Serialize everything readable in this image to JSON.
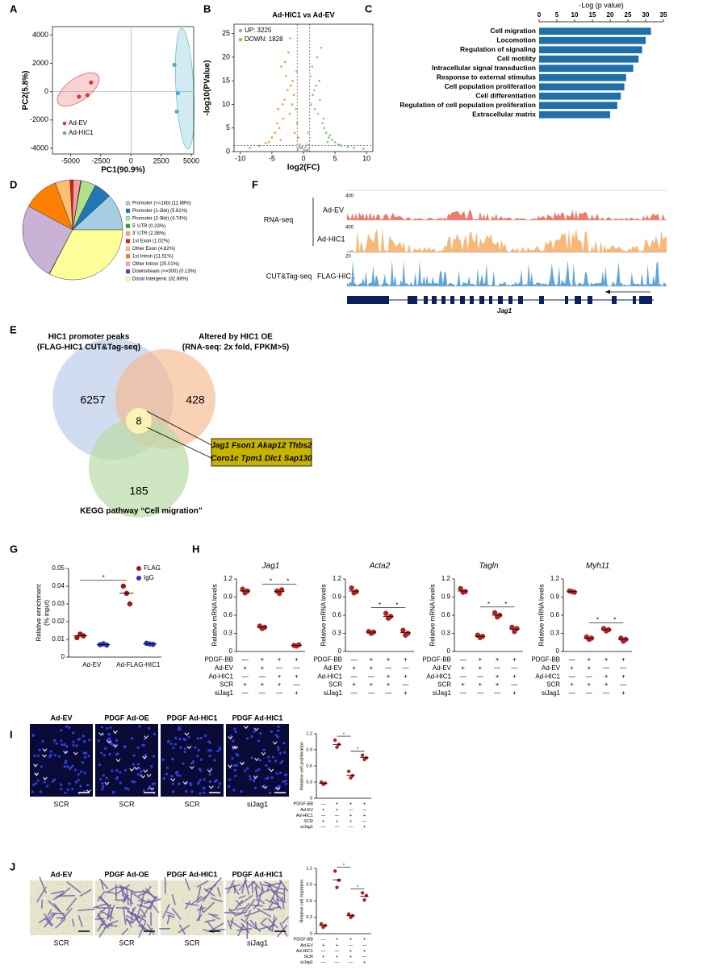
{
  "panel_labels": [
    "A",
    "B",
    "C",
    "D",
    "E",
    "F",
    "G",
    "H",
    "I",
    "J"
  ],
  "chart_data": [
    {
      "type": "scatter",
      "xlabel": "PC1(90.9%)",
      "ylabel": "PC2(5.8%)",
      "xlim": [
        -6500,
        5200
      ],
      "ylim": [
        -4400,
        4600
      ],
      "xticks": [
        -5000,
        -2500,
        0,
        2500,
        5000
      ],
      "yticks": [
        -4000,
        -2000,
        0,
        2000,
        4000
      ],
      "zero_lines": true,
      "legend": "lower left",
      "series": [
        {
          "name": "Ad-EV",
          "color": "#d9393a",
          "x": [
            -4300,
            -3600,
            -3300
          ],
          "y": [
            -350,
            -250,
            650
          ]
        },
        {
          "name": "Ad-HIC1",
          "color": "#4bafc9",
          "x": [
            3600,
            3900,
            3800
          ],
          "y": [
            1900,
            -100,
            -1400
          ]
        }
      ]
    },
    {
      "type": "scatter",
      "title": "Ad-HIC1 vs Ad-EV",
      "xlabel": "log2(FC)",
      "ylabel": "-log10(PValue)",
      "xlim": [
        -11,
        11
      ],
      "ylim": [
        0,
        27
      ],
      "xticks": [
        -10,
        -5,
        0,
        5,
        10
      ],
      "yticks": [
        0,
        5,
        10,
        15,
        20,
        25
      ],
      "reference_lines_x": [
        -1,
        1
      ],
      "reference_line_y": 1.3,
      "legend": "upper left",
      "series": [
        {
          "name": "UP: 3225",
          "color": "#7ec97e",
          "x": [
            0.6,
            0.8,
            1.0,
            1.2,
            1.5,
            1.8,
            2.0,
            2.3,
            2.6,
            3.0,
            3.3,
            3.6,
            4.0,
            4.5,
            5.0,
            5.5,
            6.0,
            7.0,
            8.0,
            9.5,
            1.1,
            1.4,
            2.2,
            2.8,
            3.8,
            1.7,
            2.5,
            4.2,
            5.8,
            3.2
          ],
          "y": [
            1.5,
            4,
            7,
            10,
            12,
            9,
            14,
            8,
            11,
            6,
            5,
            4,
            3,
            2.5,
            2,
            1.5,
            1.2,
            1,
            0.8,
            0.6,
            16,
            18,
            20,
            22,
            2,
            13,
            15,
            3.5,
            1.4,
            7
          ]
        },
        {
          "name": "DOWN: 1828",
          "color": "#f39a3b",
          "x": [
            -0.6,
            -0.8,
            -1.0,
            -1.2,
            -1.5,
            -1.8,
            -2.0,
            -2.2,
            -2.5,
            -2.8,
            -3.0,
            -3.2,
            -3.5,
            -3.8,
            -4.0,
            -4.5,
            -5.0,
            -5.5,
            -6.0,
            -7.0,
            -8.5,
            -1.1,
            -1.4,
            -2.4,
            -3.6,
            -2.9,
            -1.7,
            -4.2,
            -2.1,
            -3.3
          ],
          "y": [
            1.5,
            3,
            6,
            9,
            12,
            10,
            14,
            8,
            13,
            16,
            11,
            7,
            18,
            5,
            9,
            4,
            3,
            2,
            1.8,
            1.2,
            0.8,
            17,
            4,
            21,
            2.5,
            19,
            15,
            6,
            24,
            10
          ]
        },
        {
          "color": "#aaaaaa",
          "x": [
            -0.9,
            -0.5,
            -0.2,
            0.1,
            0.3,
            0.6,
            0.8,
            -0.7,
            0.4,
            -0.3
          ],
          "y": [
            0.5,
            0.8,
            1.0,
            0.4,
            0.9,
            0.3,
            0.6,
            1.1,
            0.2,
            0.7
          ]
        }
      ]
    },
    {
      "type": "barh",
      "xlabel": "-Log (p value)",
      "xlim": [
        0,
        35
      ],
      "xticks": [
        0,
        5,
        10,
        15,
        20,
        25,
        30,
        35
      ],
      "color": "#1f6fa8",
      "categories": [
        "Cell migration",
        "Locomotion",
        "Regulation of signaling",
        "Cell motility",
        "Intracellular signal transduction",
        "Response to external stimulus",
        "Cell population proliferation",
        "Cell differentiation",
        "Regulation of cell population proliferation",
        "Extracellular matrix"
      ],
      "values": [
        31.5,
        30,
        29,
        28,
        26.5,
        24.5,
        24,
        23,
        22,
        20
      ]
    },
    {
      "type": "pie",
      "labels": [
        "Promoter (<=1kb) (11.88%)",
        "Promoter (1-2kb) (5.61%)",
        "Promoter (2-3kb) (4.74%)",
        "5' UTR (0.23%)",
        "3' UTR (2.38%)",
        "1st Exon (1.02%)",
        "Other Exon (4.82%)",
        "1st Intron (11.51%)",
        "Other Intron (25.01%)",
        "Downstream (<=300) (0.13%)",
        "Distal Intergenic (32.68%)"
      ],
      "values": [
        11.88,
        5.61,
        4.74,
        0.23,
        2.38,
        1.02,
        4.82,
        11.51,
        25.01,
        0.13,
        32.68
      ],
      "colors": [
        "#a6cee3",
        "#1f78b4",
        "#b2df8a",
        "#33a02c",
        "#fb9a99",
        "#e31a1c",
        "#fdbf6f",
        "#ff7f00",
        "#cab2d6",
        "#6a3d9a",
        "#ffff99"
      ]
    },
    {
      "type": "dot",
      "ylabel": [
        "Relative enrichment",
        "(% input)"
      ],
      "ylim": [
        0,
        0.05
      ],
      "yticks": [
        0,
        0.01,
        0.02,
        0.03,
        0.04,
        0.05
      ],
      "categories": [
        "Ad-EV",
        "Ad-FLAG-HIC1"
      ],
      "legend": "upper right",
      "annotations": [
        "*"
      ],
      "series": [
        {
          "name": "FLAG",
          "color": "#a31515",
          "values": [
            [
              0.011,
              0.013,
              0.012
            ],
            [
              0.04,
              0.036,
              0.03
            ]
          ],
          "means": [
            0.012,
            0.036
          ]
        },
        {
          "name": "IgG",
          "color": "#2233bb",
          "values": [
            [
              0.007,
              0.0075,
              0.0068
            ],
            [
              0.0078,
              0.0074,
              0.0072
            ]
          ],
          "means": [
            0.007,
            0.0075
          ]
        }
      ]
    },
    {
      "type": "dot",
      "title": "Jag1",
      "ylabel": "Relative mRNA levels",
      "ylim": [
        0,
        1.2
      ],
      "yticks": [
        0,
        0.3,
        0.6,
        0.9,
        1.2
      ],
      "annotations": [
        "*",
        "*"
      ],
      "series": [
        {
          "color": "#b22222",
          "values": [
            [
              1.03,
              0.97,
              1.0
            ],
            [
              0.42,
              0.38,
              0.4
            ],
            [
              1.0,
              0.96,
              1.02
            ],
            [
              0.1,
              0.09,
              0.11
            ]
          ],
          "means": [
            1.0,
            0.4,
            0.99,
            0.1
          ]
        }
      ]
    },
    {
      "type": "dot",
      "title": "Acta2",
      "ylabel": "Relative mRNA levels",
      "ylim": [
        0,
        1.2
      ],
      "yticks": [
        0,
        0.3,
        0.6,
        0.9,
        1.2
      ],
      "annotations": [
        "*",
        "*"
      ],
      "series": [
        {
          "color": "#b22222",
          "values": [
            [
              1.05,
              0.97,
              0.99
            ],
            [
              0.33,
              0.3,
              0.32
            ],
            [
              0.63,
              0.55,
              0.58
            ],
            [
              0.35,
              0.27,
              0.3
            ]
          ],
          "means": [
            1.0,
            0.32,
            0.58,
            0.31
          ]
        }
      ]
    },
    {
      "type": "dot",
      "title": "Tagln",
      "ylabel": "Relative mRNA levels",
      "ylim": [
        0,
        1.2
      ],
      "yticks": [
        0,
        0.3,
        0.6,
        0.9,
        1.2
      ],
      "annotations": [
        "*",
        "*"
      ],
      "series": [
        {
          "color": "#b22222",
          "values": [
            [
              1.04,
              0.98,
              0.99
            ],
            [
              0.27,
              0.23,
              0.25
            ],
            [
              0.64,
              0.57,
              0.6
            ],
            [
              0.4,
              0.33,
              0.38
            ]
          ],
          "means": [
            1.0,
            0.25,
            0.6,
            0.37
          ]
        }
      ]
    },
    {
      "type": "dot",
      "title": "Myh11",
      "ylabel": "Relative mRNA levels",
      "ylim": [
        0,
        1.2
      ],
      "yticks": [
        0,
        0.3,
        0.6,
        0.9,
        1.2
      ],
      "annotations": [
        "*",
        "*"
      ],
      "series": [
        {
          "color": "#b22222",
          "values": [
            [
              1.0,
              0.99,
              0.98
            ],
            [
              0.24,
              0.2,
              0.22
            ],
            [
              0.38,
              0.34,
              0.36
            ],
            [
              0.22,
              0.17,
              0.2
            ]
          ],
          "means": [
            0.99,
            0.22,
            0.36,
            0.2
          ]
        }
      ]
    },
    {
      "type": "dot",
      "ylabel": "Relative cell proliferation",
      "ylim": [
        0,
        1.2
      ],
      "yticks": [
        0,
        0.3,
        0.6,
        0.9,
        1.2
      ],
      "annotations": [
        "*",
        "*"
      ],
      "series": [
        {
          "color": "#b22222",
          "values": [
            [
              0.3,
              0.26,
              0.28
            ],
            [
              1.08,
              0.95,
              1.0
            ],
            [
              0.5,
              0.38,
              0.42
            ],
            [
              0.8,
              0.72,
              0.75
            ]
          ],
          "means": [
            0.28,
            1.0,
            0.43,
            0.76
          ]
        }
      ]
    },
    {
      "type": "dot",
      "ylabel": "Relative cell migration",
      "ylim": [
        0,
        1.2
      ],
      "yticks": [
        0,
        0.3,
        0.6,
        0.9,
        1.2
      ],
      "annotations": [
        "*",
        "*"
      ],
      "series": [
        {
          "color": "#b22222",
          "values": [
            [
              0.18,
              0.12,
              0.15
            ],
            [
              1.15,
              0.85,
              0.98
            ],
            [
              0.36,
              0.3,
              0.33
            ],
            [
              0.75,
              0.62,
              0.7
            ]
          ],
          "means": [
            0.15,
            0.99,
            0.33,
            0.69
          ]
        }
      ]
    }
  ],
  "condition_table": {
    "rows": [
      {
        "label": "PDGF-BB",
        "marks": [
          "—",
          "+",
          "+",
          "+"
        ]
      },
      {
        "label": "Ad-EV",
        "marks": [
          "+",
          "+",
          "—",
          "—"
        ]
      },
      {
        "label": "Ad-HIC1",
        "marks": [
          "—",
          "—",
          "+",
          "+"
        ]
      },
      {
        "label": "SCR",
        "marks": [
          "+",
          "+",
          "+",
          "—"
        ]
      },
      {
        "label": "siJag1",
        "marks": [
          "—",
          "—",
          "—",
          "+"
        ]
      }
    ]
  },
  "venn": {
    "set_titles": [
      [
        "HIC1 promoter peaks",
        "(FLAG-HIC1 CUT&Tag-seq)"
      ],
      [
        "Altered by HIC1 OE",
        "(RNA-seq: 2x fold, FPKM>5)"
      ],
      [
        "KEGG pathway “Cell migration”"
      ]
    ],
    "counts": [
      6257,
      428,
      185,
      8
    ],
    "genes": [
      "Jag1 Fson1 Akap12 Thbs2",
      "Coro1c Tpm1 Dlc1 Sap130"
    ]
  },
  "genome_tracks": {
    "assay_labels": [
      "RNA-seq",
      "CUT&Tag-seq"
    ],
    "track_labels": [
      "Ad-EV",
      "Ad-HIC1",
      "FLAG-HIC1"
    ],
    "scale_labels": [
      400,
      400,
      20
    ],
    "gene": "Jag1"
  },
  "images": {
    "proliferation": {
      "titles": [
        "Ad-EV",
        "PDGF Ad-OE",
        "PDGF Ad-HIC1",
        "PDGF Ad-HIC1"
      ],
      "captions": [
        "SCR",
        "SCR",
        "SCR",
        "siJag1"
      ]
    },
    "migration": {
      "titles": [
        "Ad-EV",
        "PDGF Ad-OE",
        "PDGF Ad-HIC1",
        "PDGF Ad-HIC1"
      ],
      "captions": [
        "SCR",
        "SCR",
        "SCR",
        "siJag1"
      ]
    }
  }
}
